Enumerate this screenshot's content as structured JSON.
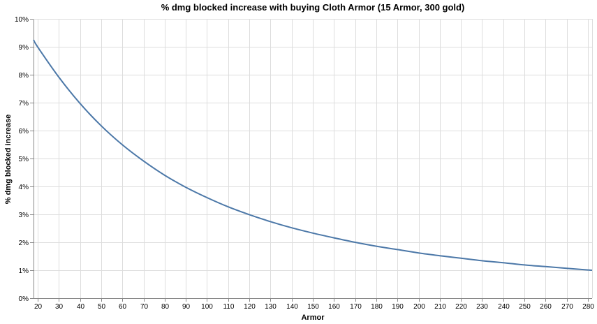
{
  "chart_data": {
    "type": "line",
    "title": "% dmg blocked increase with buying Cloth Armor (15 Armor, 300 gold)",
    "xlabel": "Armor",
    "ylabel": "% dmg blocked increase",
    "xlim": [
      18,
      282
    ],
    "ylim": [
      0,
      0.1
    ],
    "x_ticks": [
      20,
      30,
      40,
      50,
      60,
      70,
      80,
      90,
      100,
      110,
      120,
      130,
      140,
      150,
      160,
      170,
      180,
      190,
      200,
      210,
      220,
      230,
      240,
      250,
      260,
      270,
      280
    ],
    "x_tick_labels": [
      "20",
      "30",
      "40",
      "50",
      "60",
      "70",
      "80",
      "90",
      "100",
      "110",
      "120",
      "130",
      "140",
      "150",
      "160",
      "170",
      "180",
      "190",
      "200",
      "210",
      "220",
      "230",
      "240",
      "250",
      "260",
      "270",
      "280"
    ],
    "y_ticks": [
      0,
      0.01,
      0.02,
      0.03,
      0.04,
      0.05,
      0.06,
      0.07,
      0.08,
      0.09,
      0.1
    ],
    "y_tick_labels": [
      "0%",
      "1%",
      "2%",
      "3%",
      "4%",
      "5%",
      "6%",
      "7%",
      "8%",
      "9%",
      "10%"
    ],
    "grid": true,
    "series": [
      {
        "color": "#4c78a8",
        "x": [
          18,
          20,
          30,
          40,
          50,
          60,
          70,
          80,
          90,
          100,
          110,
          120,
          130,
          140,
          150,
          160,
          170,
          180,
          190,
          200,
          210,
          220,
          230,
          240,
          250,
          260,
          270,
          280,
          282
        ],
        "y": [
          0.0925,
          0.0899,
          0.0791,
          0.0697,
          0.0617,
          0.0549,
          0.0491,
          0.044,
          0.0397,
          0.036,
          0.0327,
          0.0299,
          0.0274,
          0.0252,
          0.0233,
          0.0216,
          0.02,
          0.0186,
          0.0174,
          0.0162,
          0.0152,
          0.0143,
          0.0134,
          0.0127,
          0.0119,
          0.0113,
          0.0107,
          0.0101,
          0.01
        ]
      }
    ]
  }
}
